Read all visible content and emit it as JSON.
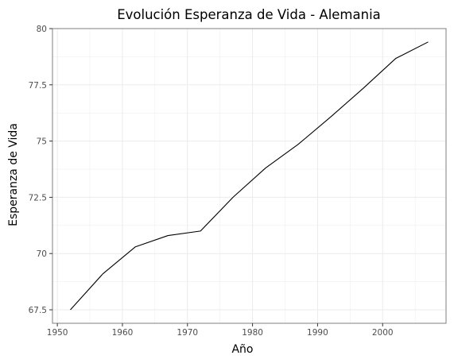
{
  "chart_data": {
    "type": "line",
    "title": "Evolución Esperanza de Vida - Alemania",
    "xlabel": "Año",
    "ylabel": "Esperanza de Vida",
    "x": [
      1952,
      1957,
      1962,
      1967,
      1972,
      1977,
      1982,
      1987,
      1992,
      1997,
      2002,
      2007
    ],
    "series": [
      {
        "values": [
          67.5,
          69.1,
          70.3,
          70.8,
          71.0,
          72.5,
          73.8,
          74.85,
          76.07,
          77.34,
          78.67,
          79.406
        ]
      }
    ],
    "xlim": [
      1949.25,
      2009.75
    ],
    "ylim": [
      66.9,
      80.0
    ],
    "xticks": [
      1950,
      1960,
      1970,
      1980,
      1990,
      2000
    ],
    "yticks": [
      67.5,
      70,
      72.5,
      75,
      77.5,
      80
    ],
    "xtick_labels": [
      "1950",
      "1960",
      "1970",
      "1980",
      "1990",
      "2000"
    ],
    "ytick_labels": [
      "67.5",
      "70",
      "72.5",
      "75",
      "77.5",
      "80"
    ],
    "grid": true,
    "line_color": "#000000",
    "grid_color": "#ebebeb"
  }
}
